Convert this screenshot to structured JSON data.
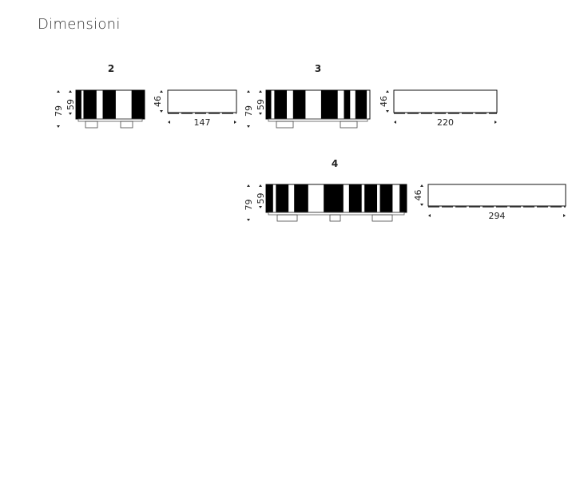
{
  "title": "Dimensioni",
  "modules": [
    {
      "label": "2",
      "height_total": "79",
      "height_body": "59",
      "depth": "46",
      "width": "147"
    },
    {
      "label": "3",
      "height_total": "79",
      "height_body": "59",
      "depth": "46",
      "width": "220"
    },
    {
      "label": "4",
      "height_total": "79",
      "height_body": "59",
      "depth": "46",
      "width": "294"
    }
  ]
}
